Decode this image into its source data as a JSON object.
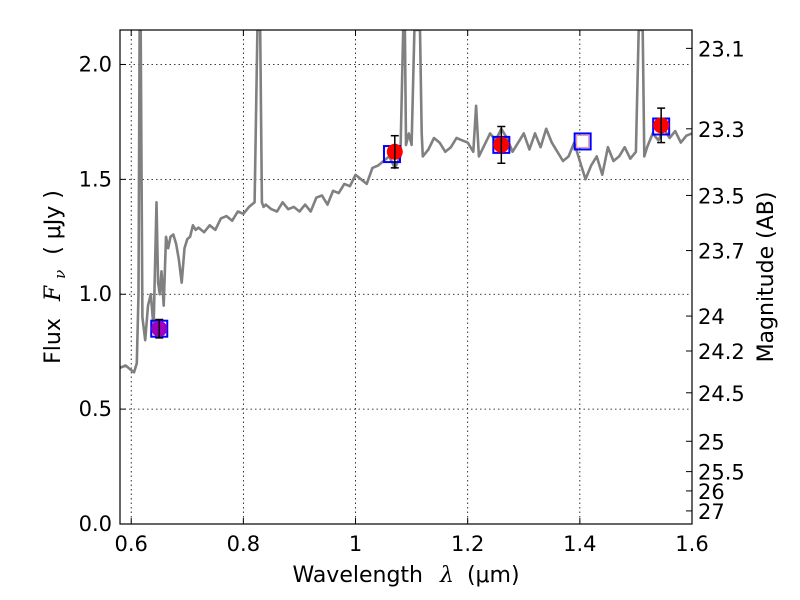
{
  "chart_data": {
    "type": "line",
    "xlabel": "Wavelength  λ (μm)",
    "xlabel_parts": {
      "word": "Wavelength",
      "symbol": "λ",
      "unit": "(μm)"
    },
    "ylabel": "Flux  Fν  ( μJy )",
    "ylabel_parts": {
      "word": "Flux",
      "symbol": "F",
      "subscript": "ν",
      "unit": "( μJy )"
    },
    "y2label": "Magnitude (AB)",
    "xlim": [
      0.58,
      1.6
    ],
    "ylim": [
      0.0,
      2.15
    ],
    "grid": true,
    "x_ticks": [
      {
        "value": 0.6,
        "label": "0.6"
      },
      {
        "value": 0.8,
        "label": "0.8"
      },
      {
        "value": 1.0,
        "label": "1"
      },
      {
        "value": 1.2,
        "label": "1.2"
      },
      {
        "value": 1.4,
        "label": "1.4"
      },
      {
        "value": 1.6,
        "label": "1.6"
      }
    ],
    "y_ticks": [
      {
        "value": 0.0,
        "label": "0.0"
      },
      {
        "value": 0.5,
        "label": "0.5"
      },
      {
        "value": 1.0,
        "label": "1.0"
      },
      {
        "value": 1.5,
        "label": "1.5"
      },
      {
        "value": 2.0,
        "label": "2.0"
      }
    ],
    "mag_ticks": [
      {
        "label": "23.1",
        "flux": 2.07
      },
      {
        "label": "23.3",
        "flux": 1.72
      },
      {
        "label": "23.5",
        "flux": 1.43
      },
      {
        "label": "23.7",
        "flux": 1.19
      },
      {
        "label": "24",
        "flux": 0.905
      },
      {
        "label": "24.2",
        "flux": 0.753
      },
      {
        "label": "24.5",
        "flux": 0.571
      },
      {
        "label": "25",
        "flux": 0.36
      },
      {
        "label": "25.5",
        "flux": 0.228
      },
      {
        "label": "26",
        "flux": 0.144
      },
      {
        "label": "27",
        "flux": 0.057
      }
    ],
    "spectrum": {
      "color": "#808080",
      "x": [
        0.58,
        0.59,
        0.6,
        0.605,
        0.61,
        0.613,
        0.615,
        0.617,
        0.62,
        0.625,
        0.63,
        0.635,
        0.64,
        0.645,
        0.648,
        0.651,
        0.654,
        0.658,
        0.662,
        0.666,
        0.67,
        0.675,
        0.68,
        0.685,
        0.69,
        0.695,
        0.7,
        0.705,
        0.71,
        0.715,
        0.72,
        0.73,
        0.74,
        0.75,
        0.76,
        0.77,
        0.78,
        0.79,
        0.8,
        0.81,
        0.82,
        0.825,
        0.828,
        0.83,
        0.833,
        0.836,
        0.84,
        0.85,
        0.86,
        0.87,
        0.88,
        0.89,
        0.9,
        0.91,
        0.92,
        0.93,
        0.94,
        0.95,
        0.96,
        0.97,
        0.98,
        0.99,
        1.0,
        1.01,
        1.02,
        1.03,
        1.04,
        1.05,
        1.06,
        1.07,
        1.08,
        1.085,
        1.088,
        1.09,
        1.095,
        1.1,
        1.105,
        1.11,
        1.115,
        1.118,
        1.12,
        1.13,
        1.14,
        1.15,
        1.16,
        1.17,
        1.18,
        1.19,
        1.2,
        1.21,
        1.215,
        1.22,
        1.23,
        1.24,
        1.25,
        1.26,
        1.27,
        1.28,
        1.29,
        1.3,
        1.31,
        1.32,
        1.33,
        1.34,
        1.35,
        1.36,
        1.37,
        1.38,
        1.39,
        1.4,
        1.41,
        1.42,
        1.43,
        1.44,
        1.45,
        1.46,
        1.47,
        1.48,
        1.49,
        1.5,
        1.505,
        1.508,
        1.512,
        1.515,
        1.52,
        1.53,
        1.54,
        1.55,
        1.56,
        1.57,
        1.58,
        1.59,
        1.6
      ],
      "y": [
        0.68,
        0.69,
        0.67,
        0.66,
        0.7,
        1.0,
        2.15,
        2.15,
        0.9,
        0.8,
        0.95,
        1.0,
        0.85,
        1.4,
        1.05,
        1.0,
        1.1,
        0.95,
        1.25,
        1.2,
        1.25,
        1.26,
        1.22,
        1.15,
        1.05,
        1.2,
        1.24,
        1.25,
        1.3,
        1.28,
        1.29,
        1.27,
        1.3,
        1.28,
        1.33,
        1.34,
        1.32,
        1.36,
        1.35,
        1.38,
        1.4,
        2.15,
        2.15,
        2.15,
        1.4,
        1.38,
        1.39,
        1.37,
        1.36,
        1.4,
        1.37,
        1.38,
        1.36,
        1.39,
        1.36,
        1.42,
        1.43,
        1.39,
        1.45,
        1.44,
        1.48,
        1.47,
        1.52,
        1.5,
        1.48,
        1.55,
        1.56,
        1.58,
        1.6,
        1.55,
        1.6,
        2.15,
        2.15,
        1.65,
        1.7,
        1.65,
        2.15,
        2.15,
        2.15,
        1.7,
        1.6,
        1.63,
        1.68,
        1.66,
        1.62,
        1.64,
        1.68,
        1.67,
        1.66,
        1.62,
        1.82,
        1.6,
        1.65,
        1.7,
        1.67,
        1.72,
        1.68,
        1.62,
        1.66,
        1.7,
        1.63,
        1.7,
        1.64,
        1.72,
        1.66,
        1.62,
        1.58,
        1.6,
        1.66,
        1.58,
        1.5,
        1.56,
        1.6,
        1.52,
        1.64,
        1.58,
        1.6,
        1.64,
        1.59,
        1.62,
        2.15,
        2.15,
        2.15,
        1.6,
        1.64,
        1.7,
        1.67,
        1.72,
        1.68,
        1.71,
        1.66,
        1.69,
        1.7
      ]
    },
    "photometry": [
      {
        "x": 1.07,
        "y": 1.62,
        "yerr": 0.07,
        "color": "#ff0000"
      },
      {
        "x": 1.26,
        "y": 1.65,
        "yerr": 0.08,
        "color": "#ff0000"
      },
      {
        "x": 1.545,
        "y": 1.735,
        "yerr": 0.075,
        "color": "#ff0000"
      },
      {
        "x": 0.65,
        "y": 0.85,
        "yerr": 0.04,
        "color": "#9b00bf"
      }
    ],
    "model_points": [
      {
        "x": 0.65,
        "y": 0.85,
        "color": "#0000ff"
      },
      {
        "x": 1.065,
        "y": 1.61,
        "color": "#0000ff"
      },
      {
        "x": 1.26,
        "y": 1.65,
        "color": "#0000ff"
      },
      {
        "x": 1.405,
        "y": 1.665,
        "color": "#0000ff"
      },
      {
        "x": 1.545,
        "y": 1.73,
        "color": "#0000ff"
      }
    ],
    "upper_limit": {
      "x": 1.405,
      "y": 1.665,
      "color": "#e8a0a0"
    }
  }
}
